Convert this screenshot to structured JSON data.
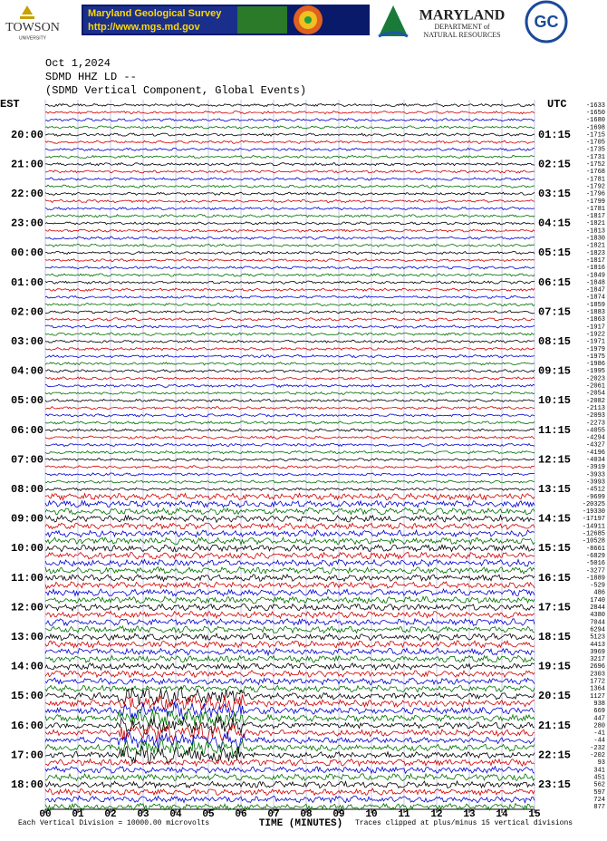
{
  "header": {
    "towson": "TOWSON",
    "towson_sub": "UNIVERSITY",
    "mgs_title": "Maryland Geological Survey",
    "mgs_url": "http://www.mgs.md.gov",
    "dnr_title": "MARYLAND",
    "dnr_line1": "DEPARTMENT of",
    "dnr_line2": "NATURAL RESOURCES",
    "gc": "GC"
  },
  "chart_data": {
    "type": "helicorder",
    "title": "Oct 1,2024",
    "subtitle": "SDMD HHZ LD --",
    "description": "(SDMD Vertical Component, Global Events)",
    "left_zone": "EST",
    "right_zone": "UTC",
    "left_labels": [
      "20:00",
      "21:00",
      "22:00",
      "23:00",
      "00:00",
      "01:00",
      "02:00",
      "03:00",
      "04:00",
      "05:00",
      "06:00",
      "07:00",
      "08:00",
      "09:00",
      "10:00",
      "11:00",
      "12:00",
      "13:00",
      "14:00",
      "15:00",
      "16:00",
      "17:00",
      "18:00"
    ],
    "right_labels": [
      "01:15",
      "02:15",
      "03:15",
      "04:15",
      "05:15",
      "06:15",
      "07:15",
      "08:15",
      "09:15",
      "10:15",
      "11:15",
      "12:15",
      "13:15",
      "14:15",
      "15:15",
      "16:15",
      "17:15",
      "18:15",
      "19:15",
      "20:15",
      "21:15",
      "22:15",
      "23:15"
    ],
    "trace_offsets": [
      -1633,
      -1650,
      -1680,
      -1698,
      -1715,
      -1705,
      -1735,
      -1731,
      -1752,
      -1768,
      -1781,
      -1792,
      -1796,
      -1799,
      -1781,
      -1817,
      -1821,
      -1813,
      -1830,
      -1821,
      -1823,
      -1817,
      -1816,
      -1849,
      -1848,
      -1847,
      -1874,
      -1859,
      -1883,
      -1863,
      -1917,
      -1922,
      -1971,
      -1979,
      -1975,
      -1986,
      -1995,
      -2023,
      -2061,
      -2054,
      -2082,
      -2113,
      -2093,
      -2273,
      -4055,
      -4294,
      -4327,
      -4196,
      -4034,
      -3919,
      -3933,
      -3993,
      -4512,
      -9699,
      -20325,
      -19330,
      -17197,
      -14911,
      -12685,
      -10528,
      -8661,
      -6829,
      -5016,
      -3277,
      -1889,
      -529,
      486,
      1740,
      2844,
      4380,
      7044,
      6294,
      5123,
      4413,
      3969,
      3217,
      2696,
      2303,
      1772,
      1364,
      1127,
      938,
      669,
      447,
      280,
      -41,
      -44,
      -232,
      -202,
      93,
      341,
      451,
      562,
      597,
      724,
      877
    ],
    "trace_colors": [
      "#000000",
      "#d00000",
      "#0000d0",
      "#007000"
    ],
    "xlabel": "TIME (MINUTES)",
    "xlim": [
      0,
      15
    ],
    "xticks": [
      {
        "value": 0,
        "label": "00"
      },
      {
        "value": 1,
        "label": "01"
      },
      {
        "value": 2,
        "label": "02"
      },
      {
        "value": 3,
        "label": "03"
      },
      {
        "value": 4,
        "label": "04"
      },
      {
        "value": 5,
        "label": "05"
      },
      {
        "value": 6,
        "label": "06"
      },
      {
        "value": 7,
        "label": "07"
      },
      {
        "value": 8,
        "label": "08"
      },
      {
        "value": 9,
        "label": "09"
      },
      {
        "value": 10,
        "label": "10"
      },
      {
        "value": 11,
        "label": "11"
      },
      {
        "value": 12,
        "label": "12"
      },
      {
        "value": 13,
        "label": "13"
      },
      {
        "value": 14,
        "label": "14"
      },
      {
        "value": 15,
        "label": "15"
      }
    ],
    "footer_left": "Each Vertical Division = 10000.00 microvolts",
    "footer_right": "Traces clipped at plus/minus 15 vertical divisions",
    "grid": true
  }
}
